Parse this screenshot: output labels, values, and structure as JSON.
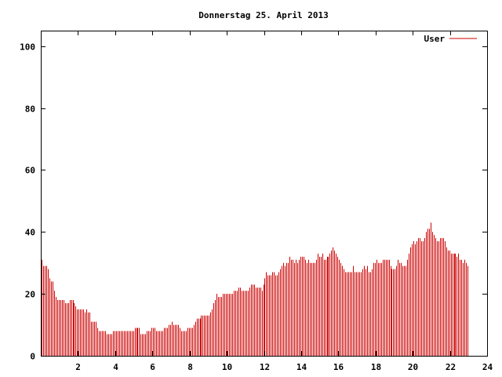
{
  "chart_data": {
    "type": "bar",
    "title": "Donnerstag 25. April 2013",
    "xlabel": "",
    "ylabel": "",
    "xlim": [
      0,
      24
    ],
    "ylim": [
      0,
      105
    ],
    "xticks": [
      "2",
      "4",
      "6",
      "8",
      "10",
      "12",
      "14",
      "16",
      "18",
      "20",
      "22",
      "24"
    ],
    "yticks": [
      "0",
      "20",
      "40",
      "60",
      "80",
      "100"
    ],
    "grid": false,
    "legend_position": "top-right",
    "color": "#cc0000",
    "series": [
      {
        "name": "User",
        "bin_hours": 0.08333,
        "values": [
          31,
          29,
          29,
          29,
          28,
          25,
          24,
          24,
          21,
          19,
          18,
          18,
          18,
          18,
          18,
          17,
          17,
          17,
          18,
          18,
          18,
          17,
          16,
          15,
          15,
          15,
          15,
          15,
          14,
          15,
          14,
          14,
          11,
          11,
          11,
          11,
          9,
          8,
          8,
          8,
          8,
          8,
          7,
          7,
          7,
          7,
          8,
          8,
          8,
          8,
          8,
          8,
          8,
          8,
          8,
          8,
          8,
          8,
          8,
          8,
          9,
          9,
          9,
          9,
          7,
          7,
          7,
          7,
          8,
          8,
          8,
          9,
          9,
          9,
          8,
          8,
          8,
          8,
          8,
          9,
          9,
          9,
          10,
          10,
          11,
          10,
          10,
          10,
          10,
          9,
          8,
          8,
          8,
          8,
          9,
          9,
          9,
          9,
          10,
          11,
          12,
          12,
          12,
          13,
          13,
          13,
          13,
          13,
          13,
          14,
          15,
          17,
          18,
          20,
          19,
          19,
          19,
          20,
          20,
          20,
          20,
          20,
          20,
          20,
          21,
          21,
          21,
          22,
          22,
          21,
          21,
          21,
          21,
          21,
          22,
          23,
          23,
          23,
          22,
          22,
          22,
          22,
          21,
          23,
          25,
          27,
          26,
          26,
          26,
          27,
          27,
          26,
          26,
          27,
          28,
          29,
          30,
          29,
          30,
          30,
          32,
          31,
          31,
          30,
          31,
          30,
          31,
          32,
          32,
          32,
          31,
          30,
          31,
          30,
          30,
          30,
          30,
          31,
          33,
          32,
          32,
          33,
          31,
          31,
          32,
          32,
          33,
          34,
          35,
          34,
          33,
          32,
          31,
          30,
          29,
          28,
          27,
          27,
          27,
          27,
          27,
          29,
          27,
          27,
          27,
          27,
          27,
          28,
          29,
          28,
          29,
          27,
          27,
          28,
          30,
          30,
          31,
          30,
          30,
          30,
          31,
          31,
          31,
          31,
          31,
          29,
          28,
          28,
          28,
          29,
          31,
          30,
          30,
          29,
          29,
          29,
          31,
          33,
          35,
          36,
          37,
          36,
          37,
          38,
          38,
          37,
          37,
          38,
          40,
          41,
          41,
          43,
          40,
          39,
          38,
          37,
          37,
          38,
          38,
          38,
          37,
          35,
          34,
          34,
          33,
          33,
          33,
          33,
          32,
          33,
          31,
          31,
          30,
          31,
          30,
          29
        ]
      }
    ]
  }
}
